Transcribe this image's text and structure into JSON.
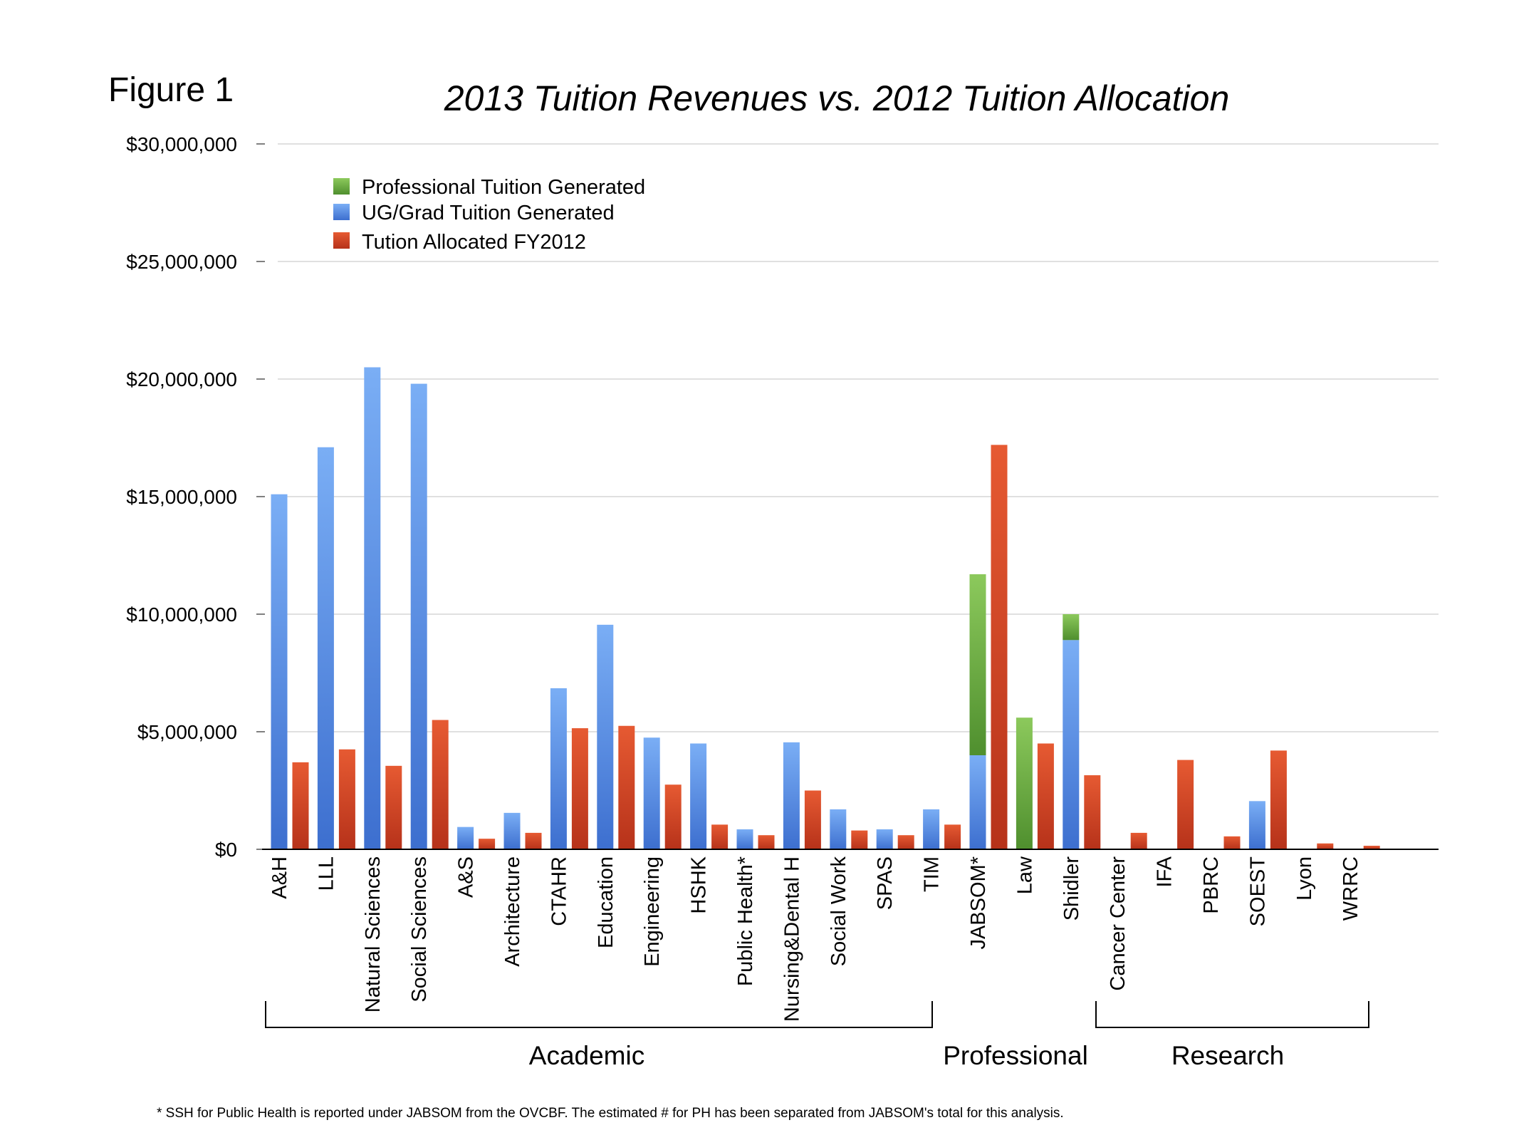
{
  "figure_label": "Figure 1",
  "chart_data": {
    "type": "bar",
    "title": "2013 Tuition Revenues vs. 2012 Tuition Allocation",
    "ylim": [
      0,
      30000000
    ],
    "yticks": [
      0,
      5000000,
      10000000,
      15000000,
      20000000,
      25000000,
      30000000
    ],
    "ytick_labels": [
      "$0",
      "$5,000,000",
      "$10,000,000",
      "$15,000,000",
      "$20,000,000",
      "$25,000,000",
      "$30,000,000"
    ],
    "grid": true,
    "legend_position": "top-left",
    "categories": [
      "A&H",
      "LLL",
      "Natural Sciences",
      "Social Sciences",
      "A&S",
      "Architecture",
      "CTAHR",
      "Education",
      "Engineering",
      "HSHK",
      "Public Health*",
      "Nursing&Dental H",
      "Social Work",
      "SPAS",
      "TIM",
      "JABSOM*",
      "Law",
      "Shidler",
      "Cancer Center",
      "IFA",
      "PBRC",
      "SOEST",
      "Lyon",
      "WRRC"
    ],
    "series": [
      {
        "name": "Professional Tuition Generated",
        "color": "#5e9e3a",
        "stacked_on": "UG/Grad Tuition Generated",
        "values": [
          0,
          0,
          0,
          0,
          0,
          0,
          0,
          0,
          0,
          0,
          0,
          0,
          0,
          0,
          0,
          7700000,
          5600000,
          1100000,
          0,
          0,
          0,
          0,
          0,
          0
        ]
      },
      {
        "name": "UG/Grad Tuition Generated",
        "color": "#4f82dc",
        "values": [
          15100000,
          17100000,
          20500000,
          19800000,
          950000,
          1550000,
          6850000,
          9550000,
          4750000,
          4500000,
          850000,
          4550000,
          1700000,
          850000,
          1700000,
          4000000,
          0,
          8900000,
          0,
          0,
          0,
          2050000,
          0,
          0
        ]
      },
      {
        "name": "Tution Allocated FY2012",
        "color": "#c8401e",
        "values": [
          3700000,
          4250000,
          3550000,
          5500000,
          450000,
          700000,
          5150000,
          5250000,
          2750000,
          1050000,
          600000,
          2500000,
          800000,
          600000,
          1050000,
          17200000,
          4500000,
          3150000,
          700000,
          3800000,
          550000,
          4200000,
          250000,
          150000
        ]
      }
    ],
    "groups": [
      {
        "label": "Academic",
        "from": 0,
        "to": 14
      },
      {
        "label": "Professional",
        "from": 15,
        "to": 17
      },
      {
        "label": "Research",
        "from": 18,
        "to": 23
      }
    ],
    "footnote": "* SSH for Public Health is reported under JABSOM from the OVCBF.  The estimated # for PH has been separated from JABSOM's total for this analysis."
  }
}
